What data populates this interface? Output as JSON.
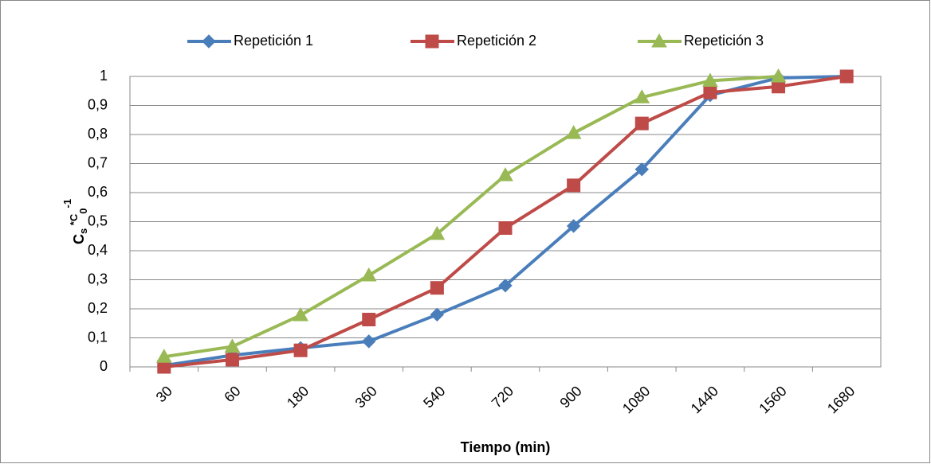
{
  "chart_data": {
    "type": "line",
    "x_label": "Tiempo (min)",
    "y_label": [
      "C",
      "s",
      " *C",
      "0",
      "-1"
    ],
    "categories": [
      "30",
      "60",
      "180",
      "360",
      "540",
      "720",
      "900",
      "1080",
      "1440",
      "1560",
      "1680"
    ],
    "series": [
      {
        "name": "Repetición 1",
        "color": "#4a7ebb",
        "marker": "diamond",
        "values": [
          0.005,
          0.04,
          0.065,
          0.088,
          0.18,
          0.28,
          0.485,
          0.68,
          0.935,
          0.995,
          1
        ]
      },
      {
        "name": "Repetición 2",
        "color": "#be4b48",
        "marker": "square",
        "values": [
          0,
          0.025,
          0.057,
          0.163,
          0.272,
          0.478,
          0.625,
          0.838,
          0.945,
          0.965,
          1
        ]
      },
      {
        "name": "Repetición 3",
        "color": "#98b954",
        "marker": "triangle",
        "values": [
          0.035,
          0.07,
          0.178,
          0.315,
          0.458,
          0.66,
          0.805,
          0.928,
          0.985,
          1,
          null
        ]
      }
    ],
    "ylim": [
      0,
      1
    ],
    "yticks": [
      0,
      {
        "value": 0.1,
        "label": "0,1"
      },
      {
        "value": 0.2,
        "label": "0,2"
      },
      {
        "value": 0.3,
        "label": "0,3"
      },
      {
        "value": 0.4,
        "label": "0,4"
      },
      {
        "value": 0.5,
        "label": "0,5"
      },
      {
        "value": 0.6,
        "label": "0,6"
      },
      {
        "value": 0.7,
        "label": "0,7"
      },
      {
        "value": 0.8,
        "label": "0,8"
      },
      {
        "value": 0.9,
        "label": "0,9"
      },
      1
    ],
    "grid": true,
    "legend": "top"
  }
}
